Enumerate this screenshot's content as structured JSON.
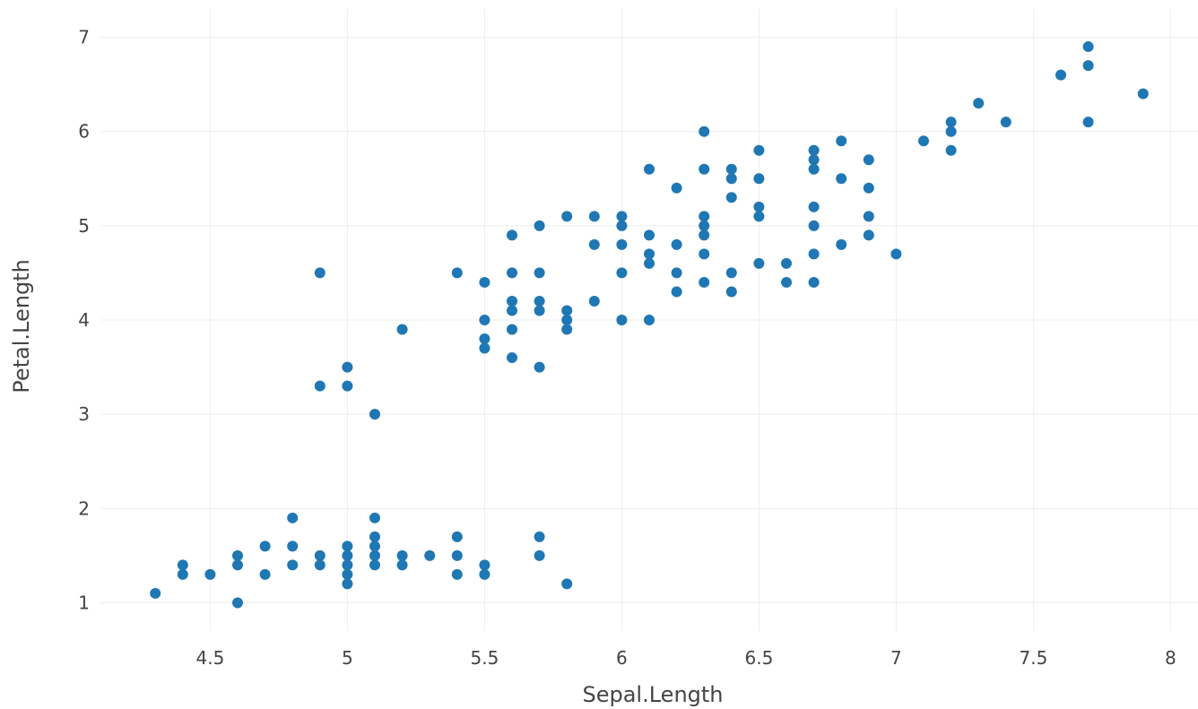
{
  "chart_data": {
    "type": "scatter",
    "title": "",
    "xlabel": "Sepal.Length",
    "ylabel": "Petal.Length",
    "xlim": [
      4.1,
      8.1
    ],
    "ylim": [
      0.7,
      7.3
    ],
    "x_ticks": [
      4.5,
      5,
      5.5,
      6,
      6.5,
      7,
      7.5,
      8
    ],
    "x_tick_labels": [
      "4.5",
      "5",
      "5.5",
      "6",
      "6.5",
      "7",
      "7.5",
      "8"
    ],
    "y_ticks": [
      1,
      2,
      3,
      4,
      5,
      6,
      7
    ],
    "y_tick_labels": [
      "1",
      "2",
      "3",
      "4",
      "5",
      "6",
      "7"
    ],
    "grid": true,
    "legend": "none",
    "marker_color": "#1f77b4",
    "series": [
      {
        "points": [
          [
            4.3,
            1.1
          ],
          [
            4.4,
            1.4
          ],
          [
            4.4,
            1.3
          ],
          [
            4.5,
            1.3
          ],
          [
            4.6,
            1.5
          ],
          [
            4.6,
            1.4
          ],
          [
            4.6,
            1.0
          ],
          [
            4.7,
            1.6
          ],
          [
            4.7,
            1.3
          ],
          [
            4.8,
            1.9
          ],
          [
            4.8,
            1.6
          ],
          [
            4.8,
            1.4
          ],
          [
            4.9,
            1.5
          ],
          [
            4.9,
            1.4
          ],
          [
            4.9,
            4.5
          ],
          [
            4.9,
            3.3
          ],
          [
            5.0,
            1.6
          ],
          [
            5.0,
            1.5
          ],
          [
            5.0,
            1.4
          ],
          [
            5.0,
            1.3
          ],
          [
            5.0,
            1.2
          ],
          [
            5.0,
            3.5
          ],
          [
            5.0,
            3.3
          ],
          [
            5.1,
            1.9
          ],
          [
            5.1,
            1.7
          ],
          [
            5.1,
            1.6
          ],
          [
            5.1,
            1.5
          ],
          [
            5.1,
            1.4
          ],
          [
            5.1,
            3.0
          ],
          [
            5.2,
            1.5
          ],
          [
            5.2,
            1.4
          ],
          [
            5.2,
            3.9
          ],
          [
            5.3,
            1.5
          ],
          [
            5.4,
            1.7
          ],
          [
            5.4,
            1.5
          ],
          [
            5.4,
            1.3
          ],
          [
            5.4,
            4.5
          ],
          [
            5.5,
            1.4
          ],
          [
            5.5,
            1.3
          ],
          [
            5.5,
            4.4
          ],
          [
            5.5,
            4.0
          ],
          [
            5.5,
            3.8
          ],
          [
            5.5,
            3.7
          ],
          [
            5.6,
            4.9
          ],
          [
            5.6,
            4.5
          ],
          [
            5.6,
            4.2
          ],
          [
            5.6,
            4.1
          ],
          [
            5.6,
            3.9
          ],
          [
            5.6,
            3.6
          ],
          [
            5.7,
            1.7
          ],
          [
            5.7,
            1.5
          ],
          [
            5.7,
            5.0
          ],
          [
            5.7,
            4.5
          ],
          [
            5.7,
            4.2
          ],
          [
            5.7,
            4.1
          ],
          [
            5.7,
            3.5
          ],
          [
            5.8,
            1.2
          ],
          [
            5.8,
            5.1
          ],
          [
            5.8,
            4.1
          ],
          [
            5.8,
            4.0
          ],
          [
            5.8,
            3.9
          ],
          [
            5.9,
            5.1
          ],
          [
            5.9,
            4.8
          ],
          [
            5.9,
            4.2
          ],
          [
            6.0,
            5.1
          ],
          [
            6.0,
            5.0
          ],
          [
            6.0,
            4.8
          ],
          [
            6.0,
            4.5
          ],
          [
            6.0,
            4.0
          ],
          [
            6.1,
            5.6
          ],
          [
            6.1,
            4.9
          ],
          [
            6.1,
            4.7
          ],
          [
            6.1,
            4.6
          ],
          [
            6.1,
            4.0
          ],
          [
            6.2,
            5.4
          ],
          [
            6.2,
            4.8
          ],
          [
            6.2,
            4.5
          ],
          [
            6.2,
            4.3
          ],
          [
            6.3,
            6.0
          ],
          [
            6.3,
            5.6
          ],
          [
            6.3,
            5.1
          ],
          [
            6.3,
            5.0
          ],
          [
            6.3,
            4.9
          ],
          [
            6.3,
            4.7
          ],
          [
            6.3,
            4.4
          ],
          [
            6.4,
            5.6
          ],
          [
            6.4,
            5.5
          ],
          [
            6.4,
            5.3
          ],
          [
            6.4,
            4.5
          ],
          [
            6.4,
            4.3
          ],
          [
            6.5,
            5.8
          ],
          [
            6.5,
            5.5
          ],
          [
            6.5,
            5.2
          ],
          [
            6.5,
            5.1
          ],
          [
            6.5,
            4.6
          ],
          [
            6.6,
            4.6
          ],
          [
            6.6,
            4.4
          ],
          [
            6.7,
            5.8
          ],
          [
            6.7,
            5.7
          ],
          [
            6.7,
            5.6
          ],
          [
            6.7,
            5.2
          ],
          [
            6.7,
            5.0
          ],
          [
            6.7,
            4.7
          ],
          [
            6.7,
            4.4
          ],
          [
            6.8,
            5.9
          ],
          [
            6.8,
            5.5
          ],
          [
            6.8,
            4.8
          ],
          [
            6.9,
            5.7
          ],
          [
            6.9,
            5.4
          ],
          [
            6.9,
            5.1
          ],
          [
            6.9,
            4.9
          ],
          [
            7.0,
            4.7
          ],
          [
            7.1,
            5.9
          ],
          [
            7.2,
            6.1
          ],
          [
            7.2,
            6.0
          ],
          [
            7.2,
            5.8
          ],
          [
            7.3,
            6.3
          ],
          [
            7.4,
            6.1
          ],
          [
            7.6,
            6.6
          ],
          [
            7.7,
            6.9
          ],
          [
            7.7,
            6.7
          ],
          [
            7.7,
            6.1
          ],
          [
            7.9,
            6.4
          ]
        ]
      }
    ]
  }
}
